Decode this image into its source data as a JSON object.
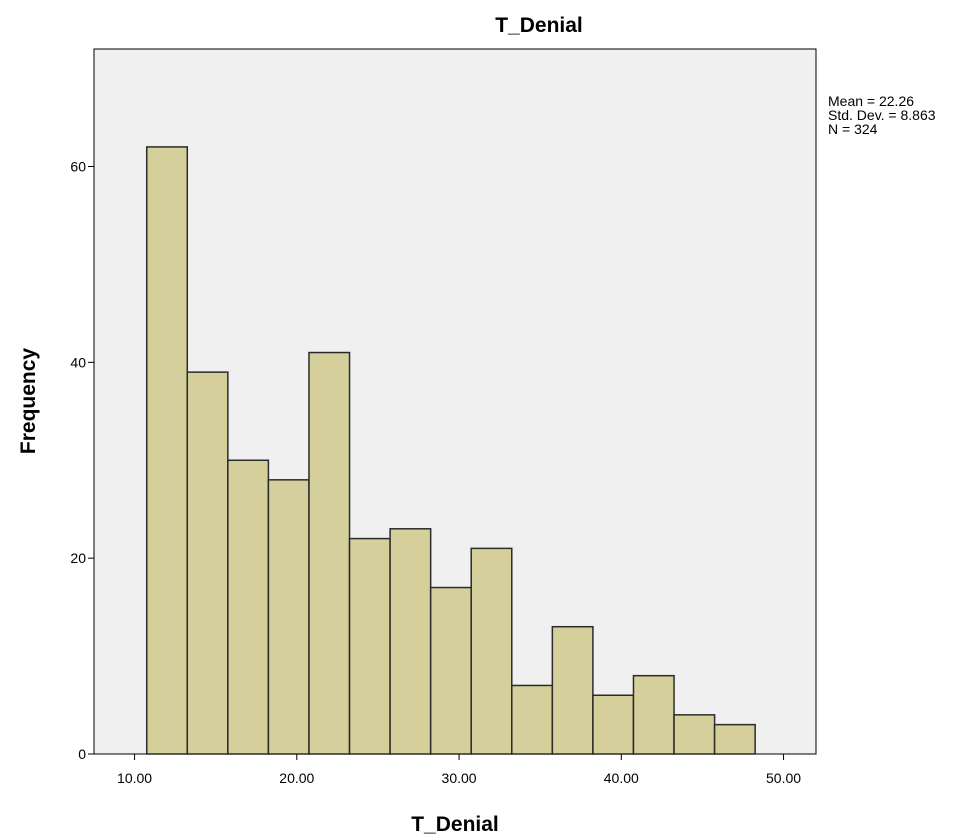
{
  "chart_data": {
    "type": "bar",
    "title": "T_Denial",
    "xlabel": "T_Denial",
    "ylabel": "Frequency",
    "xlim": [
      7.5,
      52.0
    ],
    "ylim": [
      0,
      72
    ],
    "x_ticks": [
      10,
      20,
      30,
      40,
      50
    ],
    "x_tick_labels": [
      "10.00",
      "20.00",
      "30.00",
      "40.00",
      "50.00"
    ],
    "y_ticks": [
      0,
      20,
      40,
      60
    ],
    "y_tick_labels": [
      "0",
      "20",
      "40",
      "60"
    ],
    "bins": [
      {
        "from": 10.75,
        "to": 13.25,
        "value": 62
      },
      {
        "from": 13.25,
        "to": 15.75,
        "value": 39
      },
      {
        "from": 15.75,
        "to": 18.25,
        "value": 30
      },
      {
        "from": 18.25,
        "to": 20.75,
        "value": 28
      },
      {
        "from": 20.75,
        "to": 23.25,
        "value": 41
      },
      {
        "from": 23.25,
        "to": 25.75,
        "value": 22
      },
      {
        "from": 25.75,
        "to": 28.25,
        "value": 23
      },
      {
        "from": 28.25,
        "to": 30.75,
        "value": 17
      },
      {
        "from": 30.75,
        "to": 33.25,
        "value": 21
      },
      {
        "from": 33.25,
        "to": 35.75,
        "value": 7
      },
      {
        "from": 35.75,
        "to": 38.25,
        "value": 13
      },
      {
        "from": 38.25,
        "to": 40.75,
        "value": 6
      },
      {
        "from": 40.75,
        "to": 43.25,
        "value": 8
      },
      {
        "from": 43.25,
        "to": 45.75,
        "value": 4
      },
      {
        "from": 45.75,
        "to": 48.25,
        "value": 3
      }
    ],
    "stats": [
      "Mean = 22.26",
      "Std. Dev. = 8.863",
      "N = 324"
    ],
    "grid": false,
    "legend": "none",
    "colors": {
      "bar_fill": "#d4cf9b",
      "bar_stroke": "#2b2b2b",
      "plot_background": "#f0f0f0"
    }
  }
}
